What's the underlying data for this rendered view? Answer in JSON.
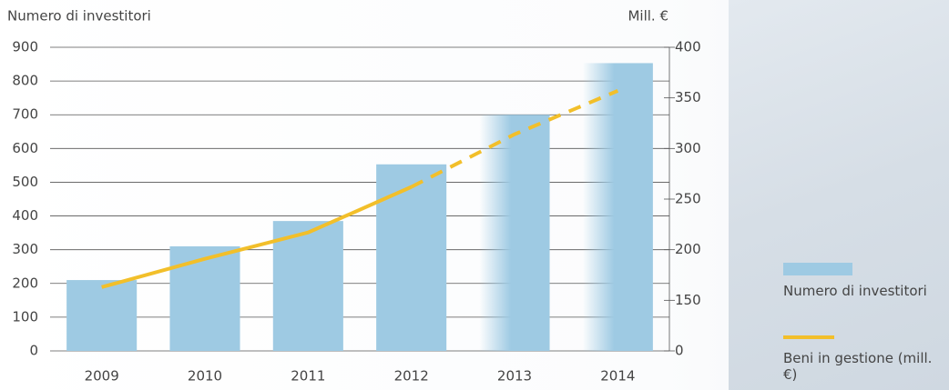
{
  "chart_data": {
    "type": "bar_line",
    "y_label": "Numero di investitori",
    "y2_label": "Mill. €",
    "categories": [
      "2009",
      "2010",
      "2011",
      "2012",
      "2013",
      "2014"
    ],
    "series": [
      {
        "name": "Numero di investitori",
        "type": "bar",
        "color": "#9ecae3",
        "values": [
          210,
          310,
          385,
          553,
          700,
          853
        ]
      },
      {
        "name": "Beni in gestione (mill. €)",
        "type": "line",
        "axis": "y2",
        "color": "#f2bf2a",
        "values": [
          163,
          191,
          217,
          262,
          314,
          357
        ]
      }
    ],
    "projected_from": "2012",
    "ylim": [
      0,
      900
    ],
    "yticks": [
      0,
      100,
      200,
      300,
      400,
      500,
      600,
      700,
      800,
      900
    ],
    "y2lim": [
      100,
      400
    ],
    "y2ticks": [
      {
        "value": 100,
        "label": "0"
      },
      150,
      200,
      250,
      300,
      350,
      400
    ],
    "grid": true
  }
}
